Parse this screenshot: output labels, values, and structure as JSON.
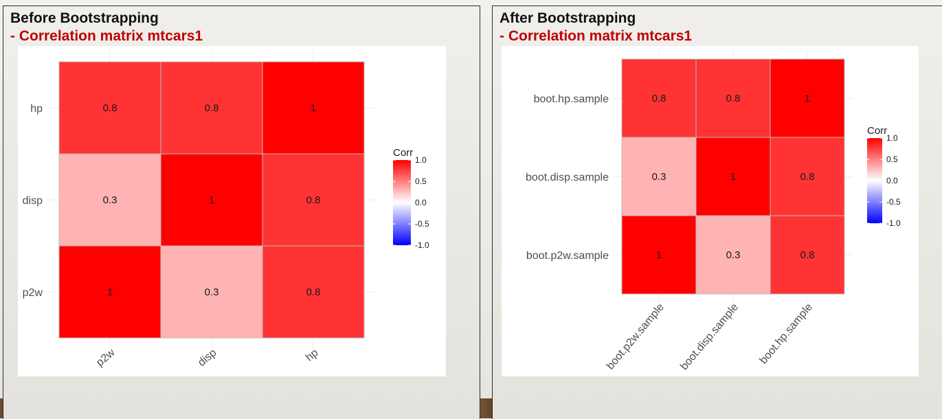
{
  "panels": {
    "left": {
      "title": "Before Bootstrapping",
      "subtitle": "- Correlation matrix mtcars1"
    },
    "right": {
      "title": "After Bootstrapping",
      "subtitle": "- Correlation matrix mtcars1"
    }
  },
  "colors": {
    "high": "#ff0000",
    "mid": "#ffffff",
    "low": "#0000ff"
  },
  "chart_data": [
    {
      "type": "heatmap",
      "title": "Before Bootstrapping - Correlation matrix mtcars1",
      "x_categories": [
        "p2w",
        "disp",
        "hp"
      ],
      "y_categories": [
        "p2w",
        "disp",
        "hp"
      ],
      "values": [
        {
          "x": "p2w",
          "y": "hp",
          "value": 0.8,
          "label": "0.8"
        },
        {
          "x": "disp",
          "y": "hp",
          "value": 0.8,
          "label": "0.8"
        },
        {
          "x": "hp",
          "y": "hp",
          "value": 1,
          "label": "1"
        },
        {
          "x": "p2w",
          "y": "disp",
          "value": 0.3,
          "label": "0.3"
        },
        {
          "x": "disp",
          "y": "disp",
          "value": 1,
          "label": "1"
        },
        {
          "x": "hp",
          "y": "disp",
          "value": 0.8,
          "label": "0.8"
        },
        {
          "x": "p2w",
          "y": "p2w",
          "value": 1,
          "label": "1"
        },
        {
          "x": "disp",
          "y": "p2w",
          "value": 0.3,
          "label": "0.3"
        },
        {
          "x": "hp",
          "y": "p2w",
          "value": 0.8,
          "label": "0.8"
        }
      ],
      "legend": {
        "title": "Corr",
        "ticks": [
          "1.0",
          "0.5",
          "0.0",
          "-0.5",
          "-1.0"
        ],
        "range": [
          -1,
          1
        ]
      }
    },
    {
      "type": "heatmap",
      "title": "After Bootstrapping - Correlation matrix mtcars1",
      "x_categories": [
        "boot.p2w.sample",
        "boot.disp.sample",
        "boot.hp.sample"
      ],
      "y_categories": [
        "boot.p2w.sample",
        "boot.disp.sample",
        "boot.hp.sample"
      ],
      "values": [
        {
          "x": "boot.p2w.sample",
          "y": "boot.hp.sample",
          "value": 0.8,
          "label": "0.8"
        },
        {
          "x": "boot.disp.sample",
          "y": "boot.hp.sample",
          "value": 0.8,
          "label": "0.8"
        },
        {
          "x": "boot.hp.sample",
          "y": "boot.hp.sample",
          "value": 1,
          "label": "1"
        },
        {
          "x": "boot.p2w.sample",
          "y": "boot.disp.sample",
          "value": 0.3,
          "label": "0.3"
        },
        {
          "x": "boot.disp.sample",
          "y": "boot.disp.sample",
          "value": 1,
          "label": "1"
        },
        {
          "x": "boot.hp.sample",
          "y": "boot.disp.sample",
          "value": 0.8,
          "label": "0.8"
        },
        {
          "x": "boot.p2w.sample",
          "y": "boot.p2w.sample",
          "value": 1,
          "label": "1"
        },
        {
          "x": "boot.disp.sample",
          "y": "boot.p2w.sample",
          "value": 0.3,
          "label": "0.3"
        },
        {
          "x": "boot.hp.sample",
          "y": "boot.p2w.sample",
          "value": 0.8,
          "label": "0.8"
        }
      ],
      "legend": {
        "title": "Corr",
        "ticks": [
          "1.0",
          "0.5",
          "0.0",
          "-0.5",
          "-1.0"
        ],
        "range": [
          -1,
          1
        ]
      }
    }
  ]
}
